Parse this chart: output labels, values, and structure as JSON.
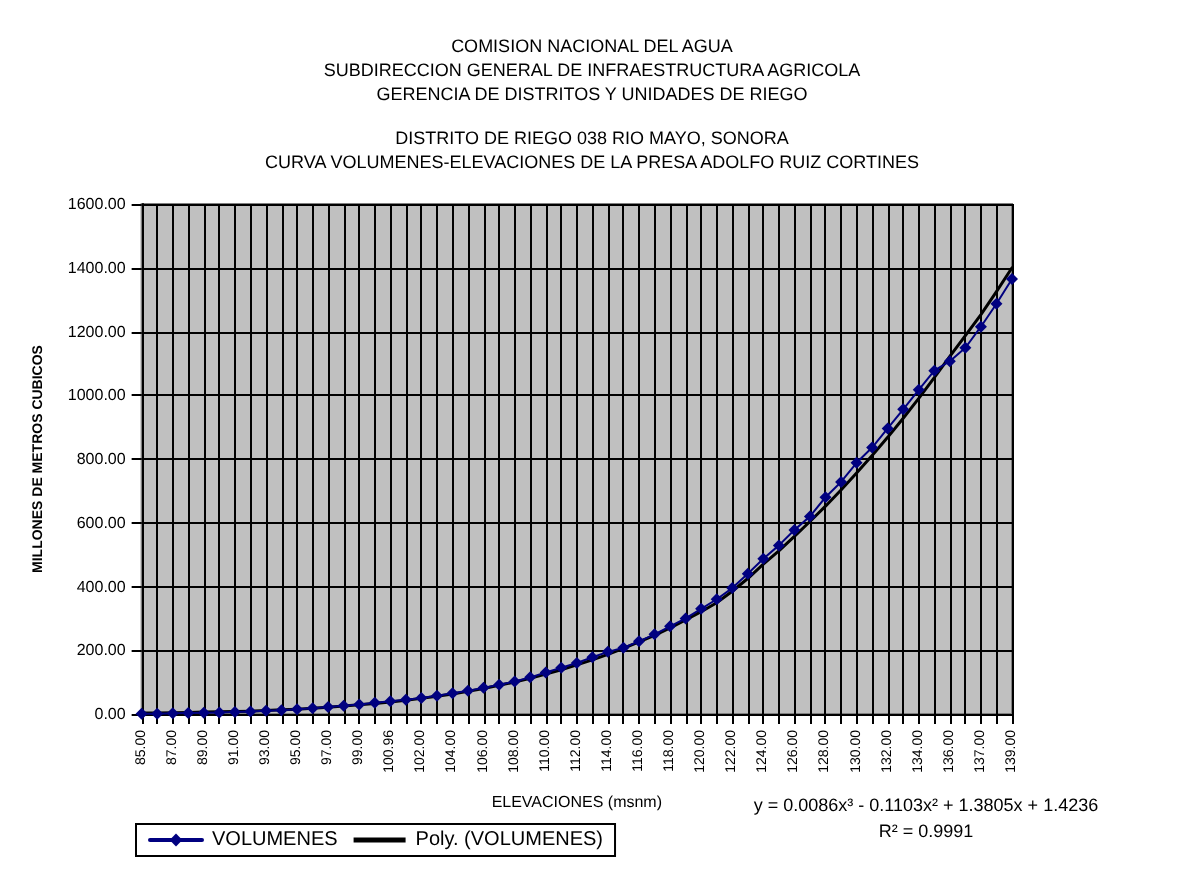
{
  "chart_data": {
    "type": "line",
    "title": "COMISION NACIONAL DEL AGUA\nSUBDIRECCION GENERAL DE INFRAESTRUCTURA AGRICOLA\nGERENCIA DE DISTRITOS Y UNIDADES DE RIEGO",
    "subtitle": "DISTRITO DE RIEGO 038 RIO MAYO, SONORA\nCURVA VOLUMENES-ELEVACIONES DE LA PRESA ADOLFO RUIZ CORTINES",
    "xlabel": "ELEVACIONES (msnm)",
    "ylabel": "MILLONES DE METROS CUBICOS",
    "categories": [
      "85.00",
      null,
      "87.00",
      null,
      "89.00",
      null,
      "91.00",
      null,
      "93.00",
      null,
      "95.00",
      null,
      "97.00",
      null,
      "99.00",
      null,
      "100.96",
      null,
      "102.00",
      null,
      "104.00",
      null,
      "106.00",
      null,
      "108.00",
      null,
      "110.00",
      null,
      "112.00",
      null,
      "114.00",
      null,
      "116.00",
      null,
      "118.00",
      null,
      "120.00",
      null,
      "122.00",
      null,
      "124.00",
      null,
      "126.00",
      null,
      "128.00",
      null,
      "130.00",
      null,
      "132.00",
      null,
      "134.00",
      null,
      "136.00",
      null,
      "137.00",
      null,
      "139.00"
    ],
    "series": [
      {
        "name": "VOLUMENES",
        "color": "#000080",
        "marker": "diamond",
        "values": [
          1,
          1,
          2,
          3,
          4,
          5,
          6,
          8,
          10,
          12,
          15,
          18,
          22,
          26,
          30,
          35,
          40,
          45,
          50,
          57,
          65,
          73,
          82,
          92,
          102,
          115,
          130,
          145,
          160,
          178,
          195,
          208,
          228,
          250,
          275,
          300,
          330,
          360,
          395,
          440,
          487,
          529,
          577,
          620,
          680,
          728,
          788,
          836,
          896,
          956,
          1017,
          1077,
          1107,
          1149,
          1215,
          1287,
          1365
        ]
      },
      {
        "name": "Poly. (VOLUMENES)",
        "color": "#000000",
        "marker": "none",
        "values": [
          3,
          3,
          4,
          5,
          6,
          7,
          8,
          9,
          11,
          13,
          15,
          18,
          21,
          25,
          29,
          33,
          38,
          43,
          49,
          56,
          63,
          71,
          80,
          90,
          100,
          112,
          125,
          139,
          154,
          170,
          187,
          206,
          226,
          247,
          270,
          295,
          321,
          349,
          385,
          425,
          470,
          512,
          557,
          604,
          652,
          703,
          756,
          811,
          868,
          928,
          990,
          1055,
          1122,
          1187,
          1253,
          1325,
          1400
        ]
      }
    ],
    "ylim": [
      0,
      1600
    ],
    "yticks": [
      {
        "value": 0,
        "label": "0.00"
      },
      {
        "value": 200,
        "label": "200.00"
      },
      {
        "value": 400,
        "label": "400.00"
      },
      {
        "value": 600,
        "label": "600.00"
      },
      {
        "value": 800,
        "label": "800.00"
      },
      {
        "value": 1000,
        "label": "1000.00"
      },
      {
        "value": 1200,
        "label": "1200.00"
      },
      {
        "value": 1400,
        "label": "1400.00"
      },
      {
        "value": 1600,
        "label": "1600.00"
      }
    ],
    "grid": true,
    "legend": "bottom left",
    "annotations": [
      "y = 0.0086x³ - 0.1103x² + 1.3805x + 1.4236",
      "R² = 0.9991"
    ]
  }
}
